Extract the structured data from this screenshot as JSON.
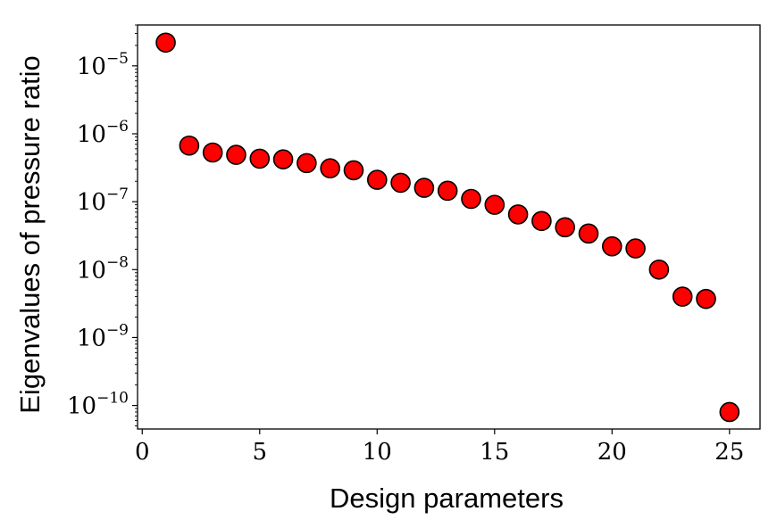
{
  "chart_data": {
    "type": "scatter",
    "title": "",
    "xlabel": "Design parameters",
    "ylabel": "Eigenvalues of pressure ratio",
    "xlim": [
      -0.2,
      26.3
    ],
    "ylim": [
      4.5e-11,
      4e-05
    ],
    "y_scale": "log",
    "grid": false,
    "legend": "none",
    "x_ticks": [
      0,
      5,
      10,
      15,
      20,
      25
    ],
    "x_tick_labels": [
      "0",
      "5",
      "10",
      "15",
      "20",
      "25"
    ],
    "y_ticks": [
      -10,
      -9,
      -8,
      -7,
      -6,
      -5
    ],
    "y_tick_base": "10",
    "y_tick_exponents": [
      "−10",
      "−9",
      "−8",
      "−7",
      "−6",
      "−5"
    ],
    "marker_color": "#ff0000",
    "marker_edge_color": "#000000",
    "series": [
      {
        "x": [
          1,
          2,
          3,
          4,
          5,
          6,
          7,
          8,
          9,
          10,
          11,
          12,
          13,
          14,
          15,
          16,
          17,
          18,
          19,
          20,
          21,
          22,
          23,
          24,
          25
        ],
        "y": [
          2.2e-05,
          6.7e-07,
          5.3e-07,
          4.9e-07,
          4.3e-07,
          4.2e-07,
          3.7e-07,
          3.1e-07,
          2.9e-07,
          2.1e-07,
          1.9e-07,
          1.6e-07,
          1.45e-07,
          1.1e-07,
          9e-08,
          6.5e-08,
          5.2e-08,
          4.2e-08,
          3.4e-08,
          2.2e-08,
          2.05e-08,
          1e-08,
          4e-09,
          3.7e-09,
          8e-11
        ]
      }
    ]
  }
}
